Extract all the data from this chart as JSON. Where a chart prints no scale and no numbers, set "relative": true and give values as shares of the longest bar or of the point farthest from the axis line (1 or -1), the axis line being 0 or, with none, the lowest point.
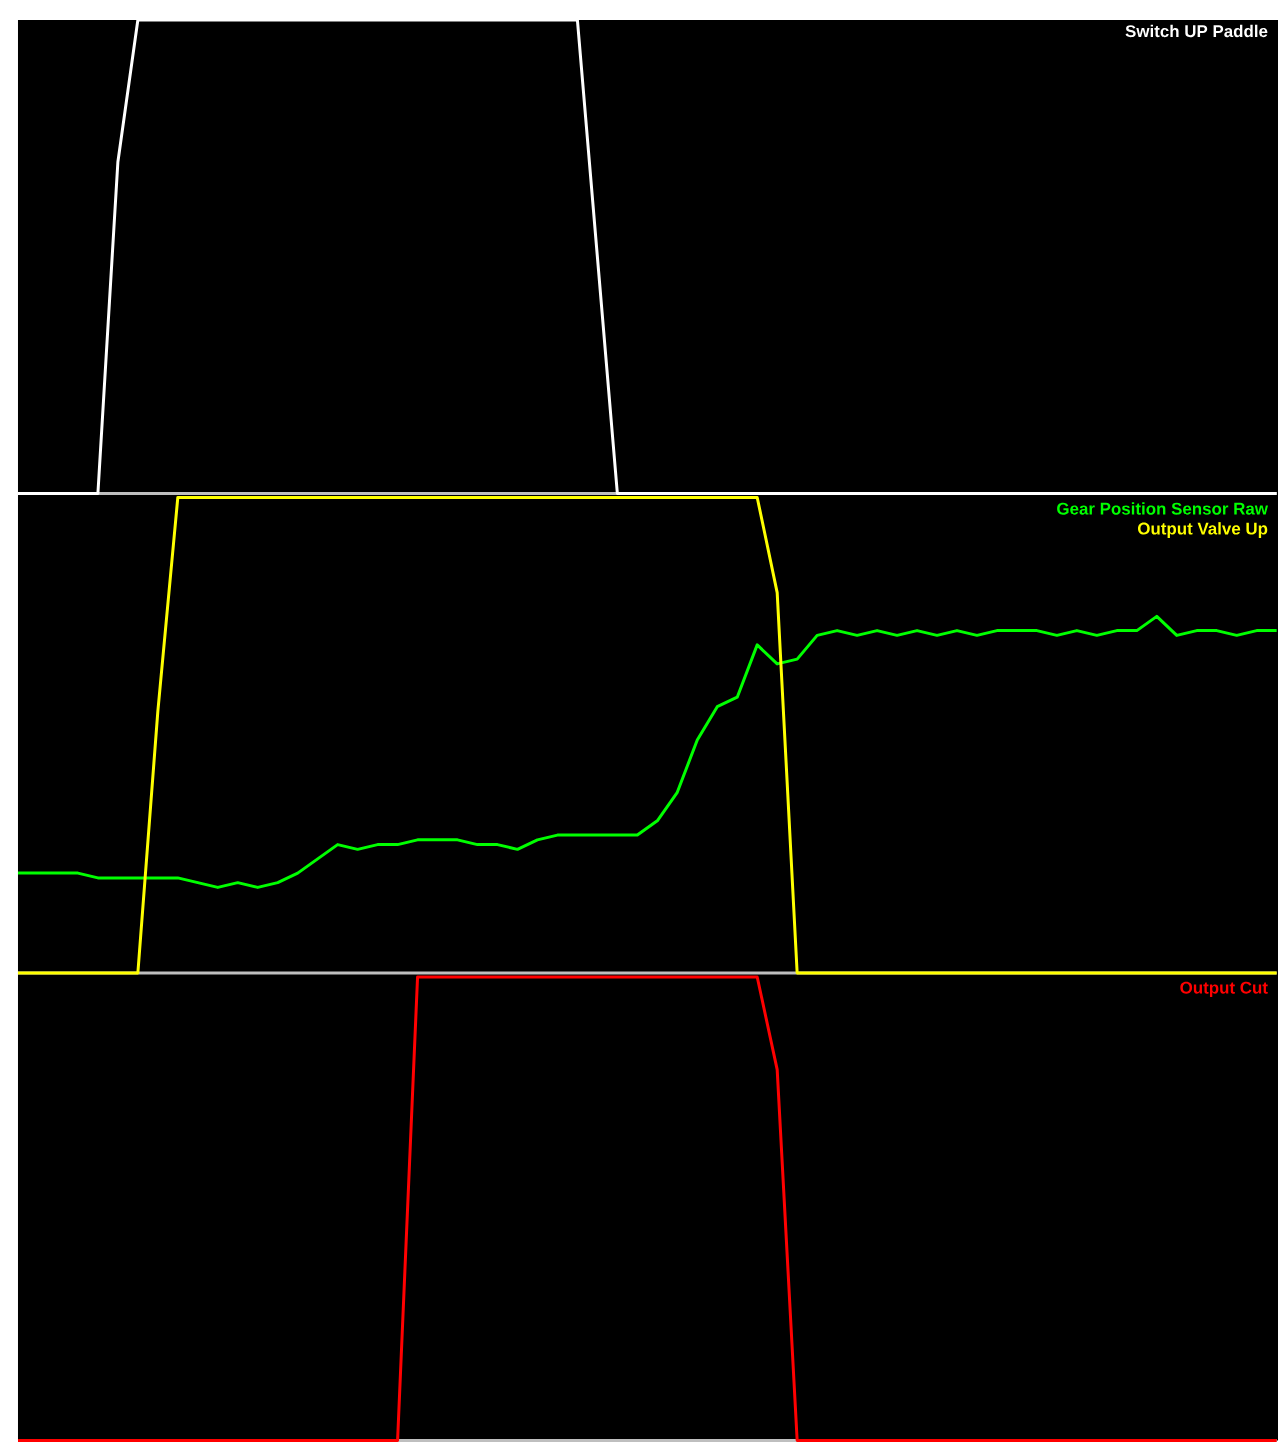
{
  "chart_data": [
    {
      "type": "line",
      "relative": true,
      "categories": [
        null,
        null,
        null,
        null,
        null,
        null,
        null,
        null,
        null,
        null,
        null,
        null,
        null,
        null,
        null,
        null,
        null,
        null,
        null,
        null,
        null,
        null,
        null,
        null,
        null,
        null,
        null,
        null,
        null,
        null,
        null,
        null,
        null,
        null,
        null,
        null,
        null,
        null,
        null,
        null,
        null,
        null,
        null,
        null,
        null,
        null,
        null,
        null,
        null,
        null,
        null,
        null,
        null,
        null,
        null,
        null,
        null,
        null,
        null,
        null,
        null,
        null,
        null,
        null
      ],
      "series": [
        {
          "name": "Switch UP Paddle",
          "color": "#ffffff",
          "values": [
            0,
            0,
            0,
            0,
            0,
            0.7,
            1,
            1,
            1,
            1,
            1,
            1,
            1,
            1,
            1,
            1,
            1,
            1,
            1,
            1,
            1,
            1,
            1,
            1,
            1,
            1,
            1,
            1,
            1,
            0.5,
            0,
            0,
            0,
            0,
            0,
            0,
            0,
            0,
            0,
            0,
            0,
            0,
            0,
            0,
            0,
            0,
            0,
            0,
            0,
            0,
            0,
            0,
            0,
            0,
            0,
            0,
            0,
            0,
            0,
            0,
            0,
            0,
            0,
            0
          ]
        }
      ]
    },
    {
      "type": "line",
      "relative": true,
      "categories": [
        null,
        null,
        null,
        null,
        null,
        null,
        null,
        null,
        null,
        null,
        null,
        null,
        null,
        null,
        null,
        null,
        null,
        null,
        null,
        null,
        null,
        null,
        null,
        null,
        null,
        null,
        null,
        null,
        null,
        null,
        null,
        null,
        null,
        null,
        null,
        null,
        null,
        null,
        null,
        null,
        null,
        null,
        null,
        null,
        null,
        null,
        null,
        null,
        null,
        null,
        null,
        null,
        null,
        null,
        null,
        null,
        null,
        null,
        null,
        null,
        null,
        null,
        null,
        null
      ],
      "series": [
        {
          "name": "Gear Position Sensor Raw",
          "color": "#00ff00",
          "values": [
            0.21,
            0.21,
            0.21,
            0.21,
            0.2,
            0.2,
            0.2,
            0.2,
            0.2,
            0.19,
            0.18,
            0.19,
            0.18,
            0.19,
            0.21,
            0.24,
            0.27,
            0.26,
            0.27,
            0.27,
            0.28,
            0.28,
            0.28,
            0.27,
            0.27,
            0.26,
            0.28,
            0.29,
            0.29,
            0.29,
            0.29,
            0.29,
            0.32,
            0.38,
            0.49,
            0.56,
            0.58,
            0.69,
            0.65,
            0.66,
            0.71,
            0.72,
            0.71,
            0.72,
            0.71,
            0.72,
            0.71,
            0.72,
            0.71,
            0.72,
            0.72,
            0.72,
            0.71,
            0.72,
            0.71,
            0.72,
            0.72,
            0.75,
            0.71,
            0.72,
            0.72,
            0.71,
            0.72,
            0.72
          ]
        },
        {
          "name": "Output Valve Up",
          "color": "#ffff00",
          "values": [
            0,
            0,
            0,
            0,
            0,
            0,
            0,
            0.55,
            1,
            1,
            1,
            1,
            1,
            1,
            1,
            1,
            1,
            1,
            1,
            1,
            1,
            1,
            1,
            1,
            1,
            1,
            1,
            1,
            1,
            1,
            1,
            1,
            1,
            1,
            1,
            1,
            1,
            1,
            0.8,
            0,
            0,
            0,
            0,
            0,
            0,
            0,
            0,
            0,
            0,
            0,
            0,
            0,
            0,
            0,
            0,
            0,
            0,
            0,
            0,
            0,
            0,
            0,
            0,
            0
          ]
        }
      ]
    },
    {
      "type": "line",
      "relative": true,
      "categories": [
        null,
        null,
        null,
        null,
        null,
        null,
        null,
        null,
        null,
        null,
        null,
        null,
        null,
        null,
        null,
        null,
        null,
        null,
        null,
        null,
        null,
        null,
        null,
        null,
        null,
        null,
        null,
        null,
        null,
        null,
        null,
        null,
        null,
        null,
        null,
        null,
        null,
        null,
        null,
        null,
        null,
        null,
        null,
        null,
        null,
        null,
        null,
        null,
        null,
        null,
        null,
        null,
        null,
        null,
        null,
        null,
        null,
        null,
        null,
        null,
        null,
        null,
        null,
        null
      ],
      "series": [
        {
          "name": "Output Cut",
          "color": "#ff0000",
          "values": [
            0,
            0,
            0,
            0,
            0,
            0,
            0,
            0,
            0,
            0,
            0,
            0,
            0,
            0,
            0,
            0,
            0,
            0,
            0,
            0,
            1,
            1,
            1,
            1,
            1,
            1,
            1,
            1,
            1,
            1,
            1,
            1,
            1,
            1,
            1,
            1,
            1,
            1,
            0.8,
            0,
            0,
            0,
            0,
            0,
            0,
            0,
            0,
            0,
            0,
            0,
            0,
            0,
            0,
            0,
            0,
            0,
            0,
            0,
            0,
            0,
            0,
            0,
            0,
            0
          ]
        }
      ]
    }
  ]
}
